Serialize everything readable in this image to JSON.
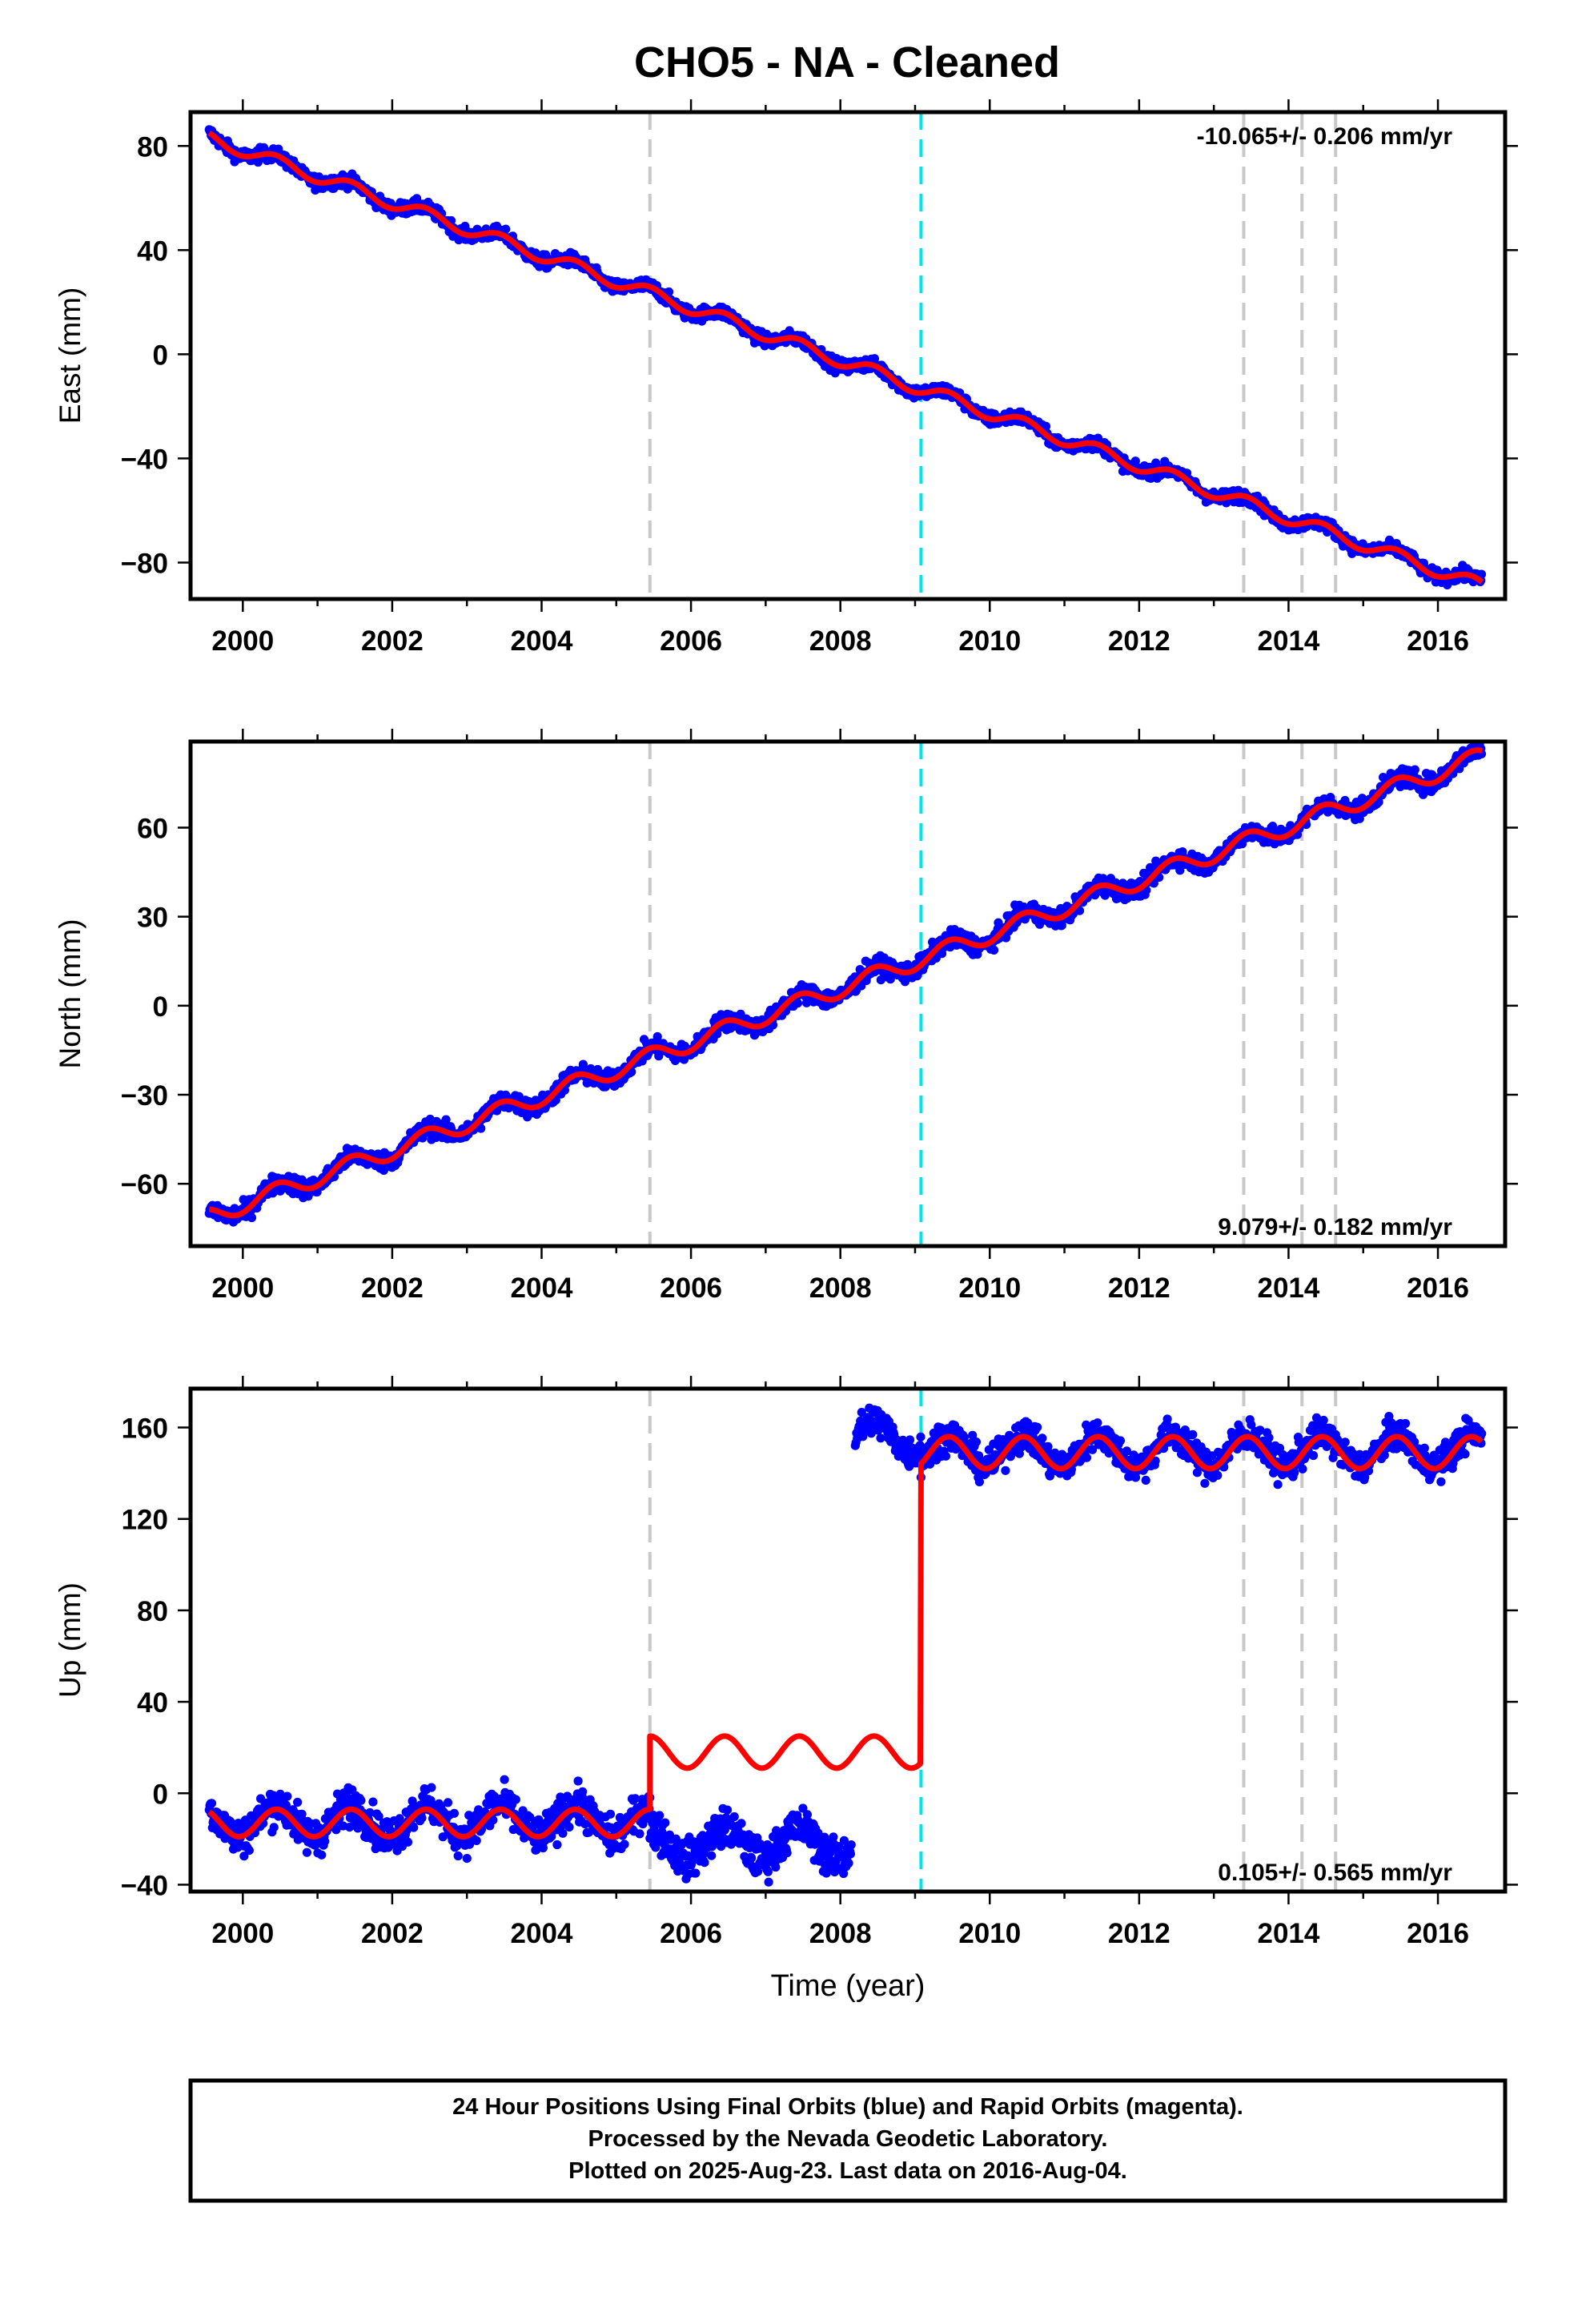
{
  "title": "CHO5  - NA - Cleaned",
  "colors": {
    "observations": "#0000ff",
    "model": "#ff0000",
    "event_gray": "#c8c8c8",
    "event_cyan": "#00e5ee"
  },
  "chart_data": [
    {
      "type": "scatter",
      "panel": "east",
      "ylabel": "East (mm)",
      "xlabel": "",
      "xlim": [
        1999.3,
        2016.9
      ],
      "ylim": [
        -94,
        93
      ],
      "xticks": [
        "2000",
        "2002",
        "2004",
        "2006",
        "2008",
        "2010",
        "2012",
        "2014",
        "2016"
      ],
      "yticks": [
        "80",
        "40",
        "0",
        "−40",
        "−80"
      ],
      "velocity_label": "-10.065+/- 0.206 mm/yr",
      "velocity_position": "top-right",
      "grid": false,
      "data_span": [
        1999.55,
        2016.59
      ],
      "model_knots": {
        "x": [
          1999.55,
          2016.59
        ],
        "y": [
          83,
          -89
        ]
      },
      "seasonal": {
        "amplitude": 2.5,
        "noise": 1.8
      },
      "series": [
        {
          "kind": "observations",
          "color": "#0000ff"
        },
        {
          "kind": "model",
          "color": "#ff0000"
        }
      ]
    },
    {
      "type": "scatter",
      "panel": "north",
      "ylabel": "North (mm)",
      "xlabel": "",
      "xlim": [
        1999.3,
        2016.9
      ],
      "ylim": [
        -81,
        89
      ],
      "xticks": [
        "2000",
        "2002",
        "2004",
        "2006",
        "2008",
        "2010",
        "2012",
        "2014",
        "2016"
      ],
      "yticks": [
        "60",
        "30",
        "0",
        "−30",
        "−60"
      ],
      "velocity_label": "9.079+/- 0.182 mm/yr",
      "velocity_position": "bottom-right",
      "grid": false,
      "data_span": [
        1999.55,
        2016.59
      ],
      "model_knots": {
        "x": [
          1999.55,
          2016.59
        ],
        "y": [
          -71,
          84
        ]
      },
      "seasonal": {
        "amplitude": 3,
        "noise": 2.2
      },
      "series": [
        {
          "kind": "observations",
          "color": "#0000ff"
        },
        {
          "kind": "model",
          "color": "#ff0000"
        }
      ]
    },
    {
      "type": "scatter",
      "panel": "up",
      "ylabel": "Up (mm)",
      "xlabel": "Time (year)",
      "xlim": [
        1999.3,
        2016.9
      ],
      "ylim": [
        -43,
        177
      ],
      "xticks": [
        "2000",
        "2002",
        "2004",
        "2006",
        "2008",
        "2010",
        "2012",
        "2014",
        "2016"
      ],
      "yticks": [
        "160",
        "120",
        "80",
        "40",
        "0",
        "−40"
      ],
      "velocity_label": "0.105+/- 0.565 mm/yr",
      "velocity_position": "bottom-right",
      "grid": false,
      "data_span": [
        1999.55,
        2016.59
      ],
      "observation_segments": [
        {
          "x": [
            1999.55,
            2005.45
          ],
          "y_center": -12,
          "noise": 6
        },
        {
          "x": [
            2005.45,
            2008.15
          ],
          "y_center": -22,
          "noise": 6
        },
        {
          "x": [
            2008.2,
            2009.08
          ],
          "y_center": 156,
          "noise": 5
        },
        {
          "x": [
            2009.08,
            2016.59
          ],
          "y_center": 150,
          "noise": 5
        }
      ],
      "model_segments": [
        {
          "x": [
            1999.55,
            2005.45
          ],
          "y_center": -13,
          "amplitude": 6
        },
        {
          "x": [
            2005.45,
            2009.08
          ],
          "y_center": 18,
          "amplitude": 7
        },
        {
          "x": [
            2009.08,
            2016.59
          ],
          "y_center": 149,
          "amplitude": 7
        }
      ],
      "series": [
        {
          "kind": "observations",
          "color": "#0000ff"
        },
        {
          "kind": "model",
          "color": "#ff0000"
        }
      ]
    }
  ],
  "events": [
    {
      "x": 2005.45,
      "style": "gray"
    },
    {
      "x": 2009.08,
      "style": "cyan"
    },
    {
      "x": 2013.4,
      "style": "gray"
    },
    {
      "x": 2014.18,
      "style": "gray"
    },
    {
      "x": 2014.63,
      "style": "gray"
    }
  ],
  "footer": {
    "line1": "24 Hour Positions Using Final Orbits (blue) and Rapid Orbits (magenta).",
    "line2": "Processed by the Nevada Geodetic Laboratory.",
    "line3": "Plotted on 2025-Aug-23. Last data on 2016-Aug-04."
  }
}
